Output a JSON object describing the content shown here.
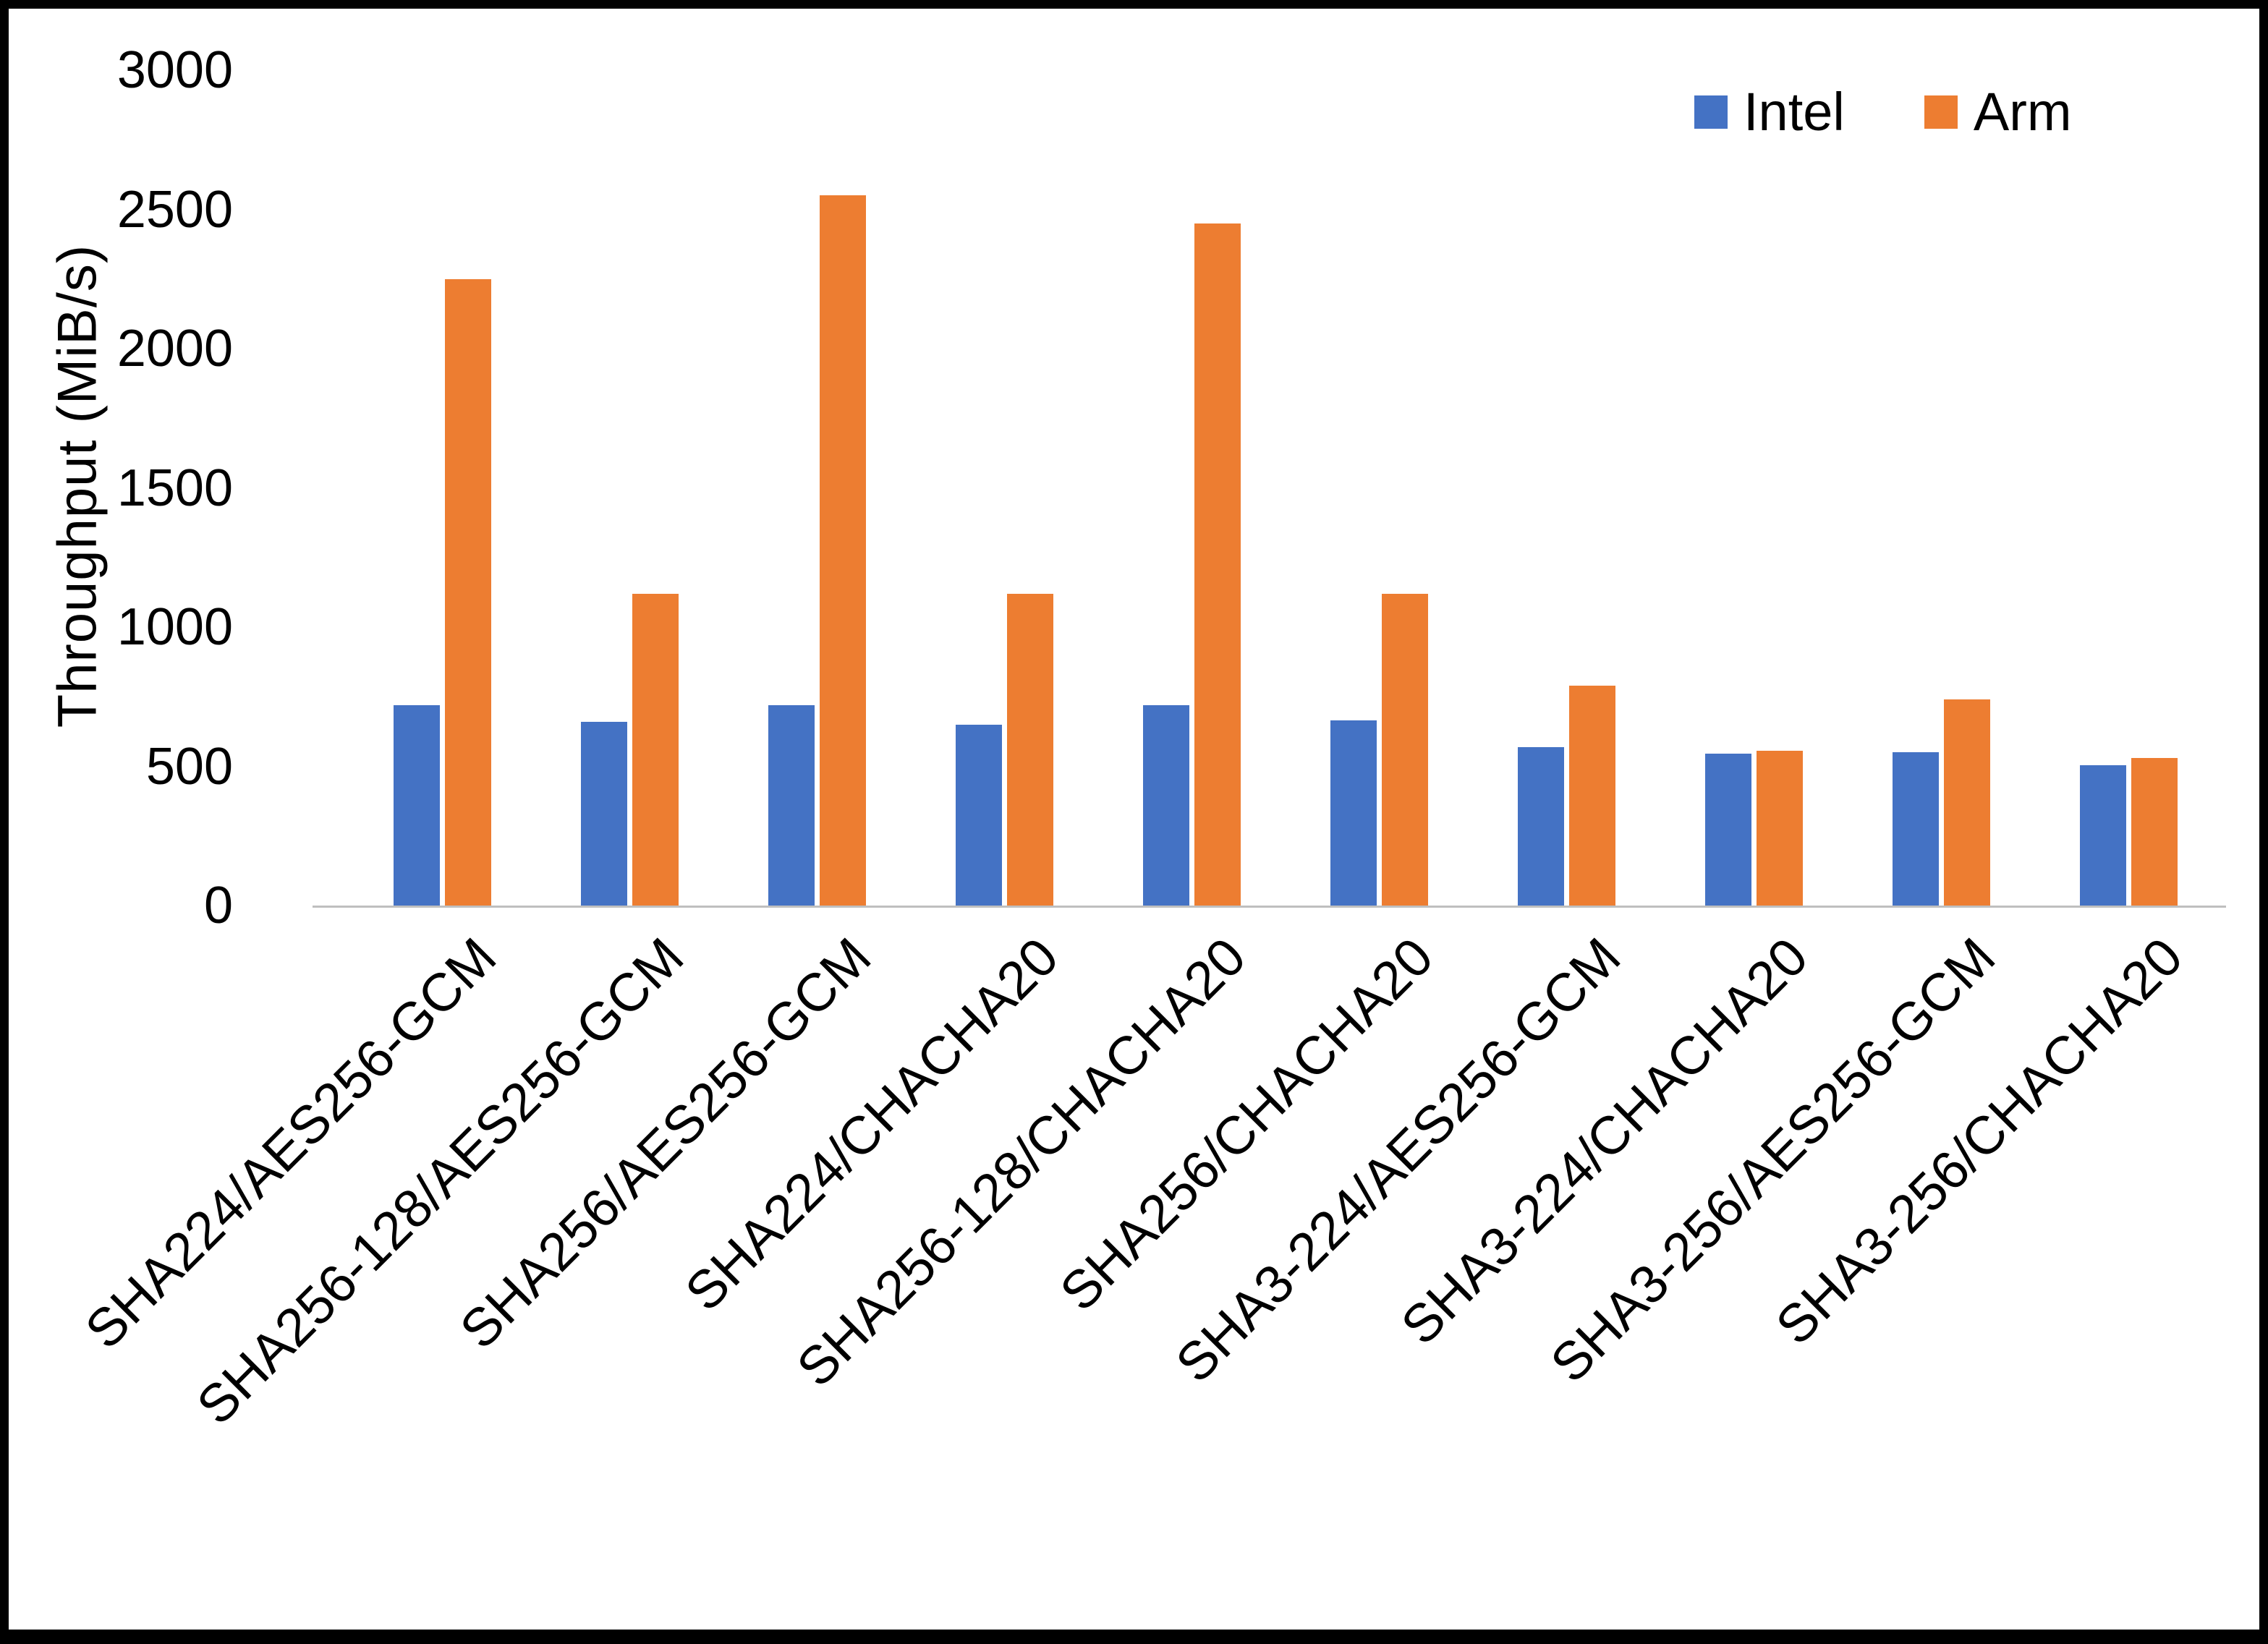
{
  "chart_data": {
    "type": "bar",
    "title": "",
    "xlabel": "",
    "ylabel": "Throughput (MiB/s)",
    "ylim": [
      0,
      3000
    ],
    "yticks": [
      0,
      500,
      1000,
      1500,
      2000,
      2500,
      3000
    ],
    "grid": false,
    "legend_position": "top-right",
    "categories": [
      "SHA224/AES256-GCM",
      "SHA256-128/AES256-GCM",
      "SHA256/AES256-GCM",
      "SHA224/CHACHA20",
      "SHA256-128/CHACHA20",
      "SHA256/CHACHA20",
      "SHA3-224/AES256-GCM",
      "SHA3-224/CHACHA20",
      "SHA3-256/AES256-GCM",
      "SHA3-256/CHACHA20"
    ],
    "series": [
      {
        "name": "Intel",
        "color": "#4472C4",
        "values": [
          720,
          660,
          720,
          650,
          720,
          665,
          570,
          545,
          550,
          505
        ]
      },
      {
        "name": "Arm",
        "color": "#ED7D31",
        "values": [
          2250,
          1120,
          2550,
          1120,
          2450,
          1120,
          790,
          555,
          740,
          530
        ]
      }
    ]
  },
  "colors": {
    "axis_line": "#BFBFBF",
    "text": "#000000",
    "frame_border": "#000000"
  }
}
